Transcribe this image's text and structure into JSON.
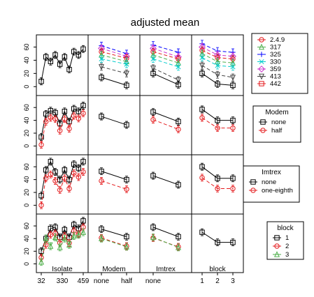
{
  "chart_data": {
    "type": "line",
    "title": "adjusted mean",
    "layout": "4x4 interaction-plot matrix (pairs-style)",
    "factors": [
      {
        "name": "Isolate",
        "ticks": [
          "32",
          "330",
          "459"
        ],
        "grid_col": 0
      },
      {
        "name": "Modem",
        "ticks": [
          "none",
          "half"
        ],
        "grid_col": 1
      },
      {
        "name": "Imtrex",
        "ticks": [
          "none"
        ],
        "grid_col": 2
      },
      {
        "name": "block",
        "ticks": [
          "1",
          "2",
          "3"
        ],
        "grid_col": 3
      }
    ],
    "y_ticks": [
      "0",
      "20",
      "40",
      "60"
    ],
    "ylim": [
      -5,
      70
    ],
    "legends": [
      {
        "title": "",
        "row": 0,
        "entries": [
          "2.4.9",
          "317",
          "325",
          "330",
          "359",
          "413",
          "442"
        ]
      },
      {
        "title": "Modem",
        "row": 1,
        "entries": [
          "none",
          "half"
        ]
      },
      {
        "title": "Imtrex",
        "row": 2,
        "entries": [
          "none",
          "one-eighth"
        ]
      },
      {
        "title": "block",
        "row": 3,
        "entries": [
          "1",
          "2",
          "3"
        ]
      }
    ],
    "colors": [
      "#000000",
      "#e41a1c",
      "#4daf4a",
      "#0000ff",
      "#00cccc",
      "#cc33cc",
      "#444444",
      "#e41a1c"
    ],
    "panels": [
      {
        "row": 0,
        "col": 0,
        "x": [
          1,
          2,
          3,
          4,
          5,
          6,
          7,
          8,
          9,
          10
        ],
        "series": [
          {
            "color_index": 0,
            "pch": "square",
            "values": [
              8,
              45,
              38,
              48,
              34,
              45,
              26,
              53,
              48,
              57
            ]
          }
        ]
      },
      {
        "row": 0,
        "col": 1,
        "x": [
          1,
          2
        ],
        "series": [
          {
            "color_index": 3,
            "pch": "plus",
            "values": [
              62,
              50
            ]
          },
          {
            "color_index": 5,
            "pch": "diamond",
            "values": [
              58,
              46
            ]
          },
          {
            "color_index": 1,
            "pch": "circle",
            "values": [
              53,
              43
            ]
          },
          {
            "color_index": 2,
            "pch": "triangle",
            "values": [
              48,
              38
            ]
          },
          {
            "color_index": 4,
            "pch": "x",
            "values": [
              42,
              34
            ]
          },
          {
            "color_index": 6,
            "pch": "tri-down",
            "values": [
              30,
              20
            ]
          },
          {
            "color_index": 0,
            "pch": "square",
            "values": [
              14,
              2
            ]
          }
        ]
      },
      {
        "row": 0,
        "col": 2,
        "x": [
          1,
          2
        ],
        "series": [
          {
            "color_index": 3,
            "pch": "plus",
            "values": [
              63,
              52
            ]
          },
          {
            "color_index": 5,
            "pch": "diamond",
            "values": [
              58,
              45
            ]
          },
          {
            "color_index": 1,
            "pch": "circle",
            "values": [
              53,
              42
            ]
          },
          {
            "color_index": 2,
            "pch": "triangle",
            "values": [
              48,
              36
            ]
          },
          {
            "color_index": 4,
            "pch": "x",
            "values": [
              42,
              30
            ]
          },
          {
            "color_index": 6,
            "pch": "tri-down",
            "values": [
              28,
              10
            ]
          },
          {
            "color_index": 0,
            "pch": "square",
            "values": [
              20,
              3
            ]
          }
        ]
      },
      {
        "row": 0,
        "col": 3,
        "x": [
          1,
          2,
          3
        ],
        "series": [
          {
            "color_index": 3,
            "pch": "plus",
            "values": [
              65,
              54,
              52
            ]
          },
          {
            "color_index": 5,
            "pch": "diamond",
            "values": [
              60,
              48,
              46
            ]
          },
          {
            "color_index": 1,
            "pch": "circle",
            "values": [
              55,
              44,
              42
            ]
          },
          {
            "color_index": 2,
            "pch": "triangle",
            "values": [
              50,
              38,
              36
            ]
          },
          {
            "color_index": 4,
            "pch": "x",
            "values": [
              44,
              32,
              30
            ]
          },
          {
            "color_index": 6,
            "pch": "tri-down",
            "values": [
              32,
              18,
              14
            ]
          },
          {
            "color_index": 0,
            "pch": "square",
            "values": [
              20,
              4,
              2
            ]
          }
        ]
      },
      {
        "row": 1,
        "col": 0,
        "x": [
          1,
          2,
          3,
          4,
          5,
          6,
          7,
          8,
          9,
          10
        ],
        "series": [
          {
            "color_index": 0,
            "pch": "square",
            "values": [
              14,
              50,
              55,
              52,
              35,
              54,
              38,
              58,
              54,
              63
            ]
          },
          {
            "color_index": 1,
            "pch": "circle",
            "values": [
              2,
              38,
              44,
              42,
              24,
              42,
              27,
              47,
              43,
              51
            ]
          }
        ]
      },
      {
        "row": 1,
        "col": 1,
        "x": [
          1,
          2
        ],
        "series": [
          {
            "color_index": 0,
            "pch": "square",
            "values": [
              46,
              33
            ]
          }
        ]
      },
      {
        "row": 1,
        "col": 2,
        "x": [
          1,
          2
        ],
        "series": [
          {
            "color_index": 0,
            "pch": "square",
            "values": [
              53,
              38
            ]
          },
          {
            "color_index": 1,
            "pch": "circle",
            "values": [
              41,
              26
            ]
          }
        ]
      },
      {
        "row": 1,
        "col": 3,
        "x": [
          1,
          2,
          3
        ],
        "series": [
          {
            "color_index": 0,
            "pch": "square",
            "values": [
              57,
              40,
              40
            ]
          },
          {
            "color_index": 1,
            "pch": "circle",
            "values": [
              44,
              28,
              28
            ]
          }
        ]
      },
      {
        "row": 2,
        "col": 0,
        "x": [
          1,
          2,
          3,
          4,
          5,
          6,
          7,
          8,
          9,
          10
        ],
        "series": [
          {
            "color_index": 0,
            "pch": "square",
            "values": [
              15,
              55,
              68,
              52,
              40,
              55,
              40,
              64,
              58,
              68
            ]
          },
          {
            "color_index": 1,
            "pch": "circle",
            "values": [
              0,
              42,
              48,
              38,
              24,
              42,
              26,
              50,
              44,
              52
            ]
          }
        ]
      },
      {
        "row": 2,
        "col": 1,
        "x": [
          1,
          2
        ],
        "series": [
          {
            "color_index": 0,
            "pch": "square",
            "values": [
              53,
              40
            ]
          },
          {
            "color_index": 1,
            "pch": "circle",
            "values": [
              38,
              25
            ]
          }
        ]
      },
      {
        "row": 2,
        "col": 2,
        "x": [
          1,
          2
        ],
        "series": [
          {
            "color_index": 0,
            "pch": "square",
            "values": [
              46,
              32
            ]
          }
        ]
      },
      {
        "row": 2,
        "col": 3,
        "x": [
          1,
          2,
          3
        ],
        "series": [
          {
            "color_index": 0,
            "pch": "square",
            "values": [
              60,
              42,
              42
            ]
          },
          {
            "color_index": 1,
            "pch": "circle",
            "values": [
              43,
              26,
              26
            ]
          }
        ]
      },
      {
        "row": 3,
        "col": 0,
        "x": [
          1,
          2,
          3,
          4,
          5,
          6,
          7,
          8,
          9,
          10
        ],
        "series": [
          {
            "color_index": 0,
            "pch": "square",
            "values": [
              20,
              40,
              56,
              58,
              42,
              54,
              42,
              62,
              56,
              68
            ]
          },
          {
            "color_index": 1,
            "pch": "circle",
            "values": [
              10,
              30,
              46,
              48,
              33,
              44,
              33,
              52,
              47,
              58
            ]
          },
          {
            "color_index": 2,
            "pch": "triangle",
            "values": [
              3,
              40,
              28,
              42,
              26,
              40,
              30,
              44,
              46,
              50
            ]
          }
        ]
      },
      {
        "row": 3,
        "col": 1,
        "x": [
          1,
          2
        ],
        "series": [
          {
            "color_index": 0,
            "pch": "square",
            "values": [
              55,
              43
            ]
          },
          {
            "color_index": 1,
            "pch": "circle",
            "values": [
              41,
              28
            ]
          },
          {
            "color_index": 2,
            "pch": "triangle",
            "values": [
              40,
              27
            ]
          }
        ]
      },
      {
        "row": 3,
        "col": 2,
        "x": [
          1,
          2
        ],
        "series": [
          {
            "color_index": 0,
            "pch": "square",
            "values": [
              58,
              43
            ]
          },
          {
            "color_index": 1,
            "pch": "circle",
            "values": [
              41,
              27
            ]
          },
          {
            "color_index": 2,
            "pch": "triangle",
            "values": [
              42,
              26
            ]
          }
        ]
      },
      {
        "row": 3,
        "col": 3,
        "x": [
          1,
          2,
          3
        ],
        "series": [
          {
            "color_index": 0,
            "pch": "square",
            "values": [
              50,
              34,
              34
            ]
          }
        ]
      }
    ]
  }
}
